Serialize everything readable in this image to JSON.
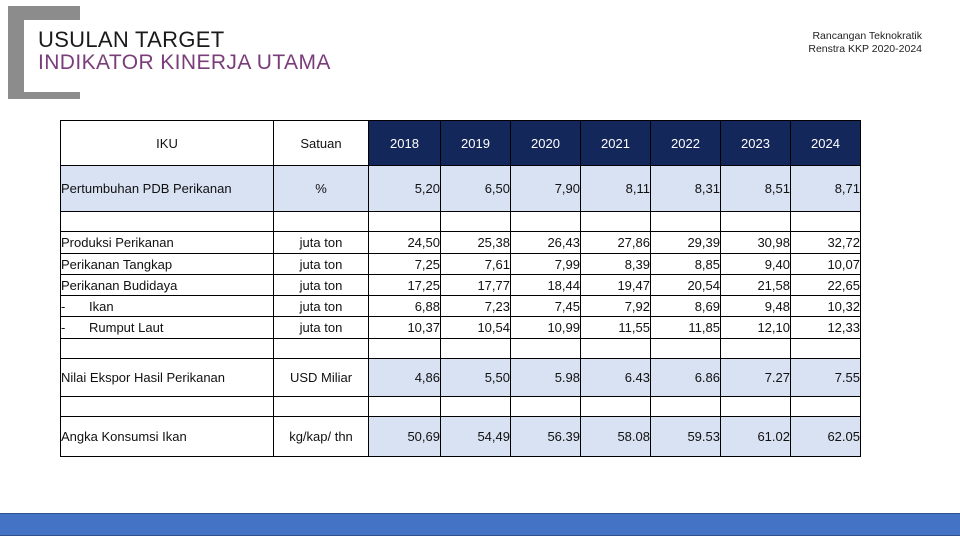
{
  "title": {
    "line1": "USULAN TARGET",
    "line2": "INDIKATOR KINERJA UTAMA"
  },
  "meta": {
    "line1": "Rancangan Teknokratik",
    "line2": "Renstra KKP 2020-2024"
  },
  "colors": {
    "header_navy": "#14275a",
    "row_blue": "#d9e2f3",
    "title_purple": "#7a3d7a",
    "footer_blue": "#4472c4"
  },
  "table": {
    "headers": {
      "iku": "IKU",
      "satuan": "Satuan",
      "years": [
        "2018",
        "2019",
        "2020",
        "2021",
        "2022",
        "2023",
        "2024"
      ]
    },
    "pdb": {
      "label": "Pertumbuhan PDB Perikanan",
      "unit": "%",
      "values": [
        "5,20",
        "6,50",
        "7,90",
        "8,11",
        "8,31",
        "8,51",
        "8,71"
      ]
    },
    "produksi": [
      {
        "label": "Produksi Perikanan",
        "unit": "juta ton",
        "values": [
          "24,50",
          "25,38",
          "26,43",
          "27,86",
          "29,39",
          "30,98",
          "32,72"
        ]
      },
      {
        "label": "Perikanan Tangkap",
        "unit": "juta ton",
        "values": [
          "7,25",
          "7,61",
          "7,99",
          "8,39",
          "8,85",
          "9,40",
          "10,07"
        ]
      },
      {
        "label": "Perikanan Budidaya",
        "unit": "juta ton",
        "values": [
          "17,25",
          "17,77",
          "18,44",
          "19,47",
          "20,54",
          "21,58",
          "22,65"
        ]
      },
      {
        "dash": "-",
        "label": "Ikan",
        "unit": "juta ton",
        "values": [
          "6,88",
          "7,23",
          "7,45",
          "7,92",
          "8,69",
          "9,48",
          "10,32"
        ]
      },
      {
        "dash": "-",
        "label": "Rumput Laut",
        "unit": "juta ton",
        "values": [
          "10,37",
          "10,54",
          "10,99",
          "11,55",
          "11,85",
          "12,10",
          "12,33"
        ]
      }
    ],
    "ekspor": {
      "label": "Nilai Ekspor Hasil Perikanan",
      "unit": "USD Miliar",
      "values": [
        "4,86",
        "5,50",
        "5.98",
        "6.43",
        "6.86",
        "7.27",
        "7.55"
      ]
    },
    "konsumsi": {
      "label": "Angka Konsumsi Ikan",
      "unit": "kg/kap/ thn",
      "values": [
        "50,69",
        "54,49",
        "56.39",
        "58.08",
        "59.53",
        "61.02",
        "62.05"
      ]
    }
  }
}
